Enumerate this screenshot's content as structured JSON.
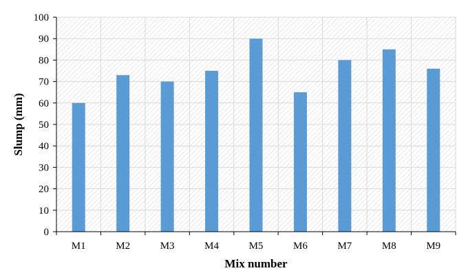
{
  "chart_data": {
    "type": "bar",
    "title": "",
    "xlabel": "Mix number",
    "ylabel": "Slump (mm)",
    "categories": [
      "M1",
      "M2",
      "M3",
      "M4",
      "M5",
      "M6",
      "M7",
      "M8",
      "M9"
    ],
    "values": [
      60,
      73,
      70,
      75,
      90,
      65,
      80,
      85,
      76
    ],
    "ylim": [
      0,
      100
    ],
    "yticks": [
      0,
      10,
      20,
      30,
      40,
      50,
      60,
      70,
      80,
      90,
      100
    ],
    "grid": true,
    "legend": "none",
    "colors": {
      "bar": "#5b9bd5",
      "grid": "#d9d9d9",
      "axis": "#000000",
      "plot_background_hatch": "#e6e6e6"
    }
  }
}
